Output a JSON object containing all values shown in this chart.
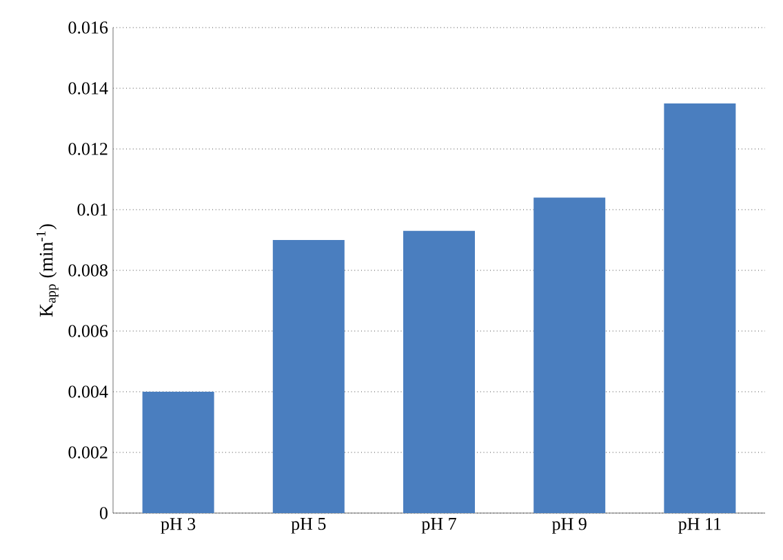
{
  "chart_data": {
    "type": "bar",
    "ylabel": "K$_{app}$ (min$^{-1}$)",
    "categories": [
      "pH 3",
      "pH 5",
      "pH 7",
      "pH 9",
      "pH 11"
    ],
    "values": [
      0.004,
      0.009,
      0.0093,
      0.0104,
      0.0135
    ],
    "color": "#4a7ebf",
    "ylim": [
      0,
      0.016
    ],
    "yticks": [
      0,
      0.002,
      0.004,
      0.006,
      0.008,
      0.01,
      0.012,
      0.014,
      0.016
    ],
    "grid": "y"
  }
}
